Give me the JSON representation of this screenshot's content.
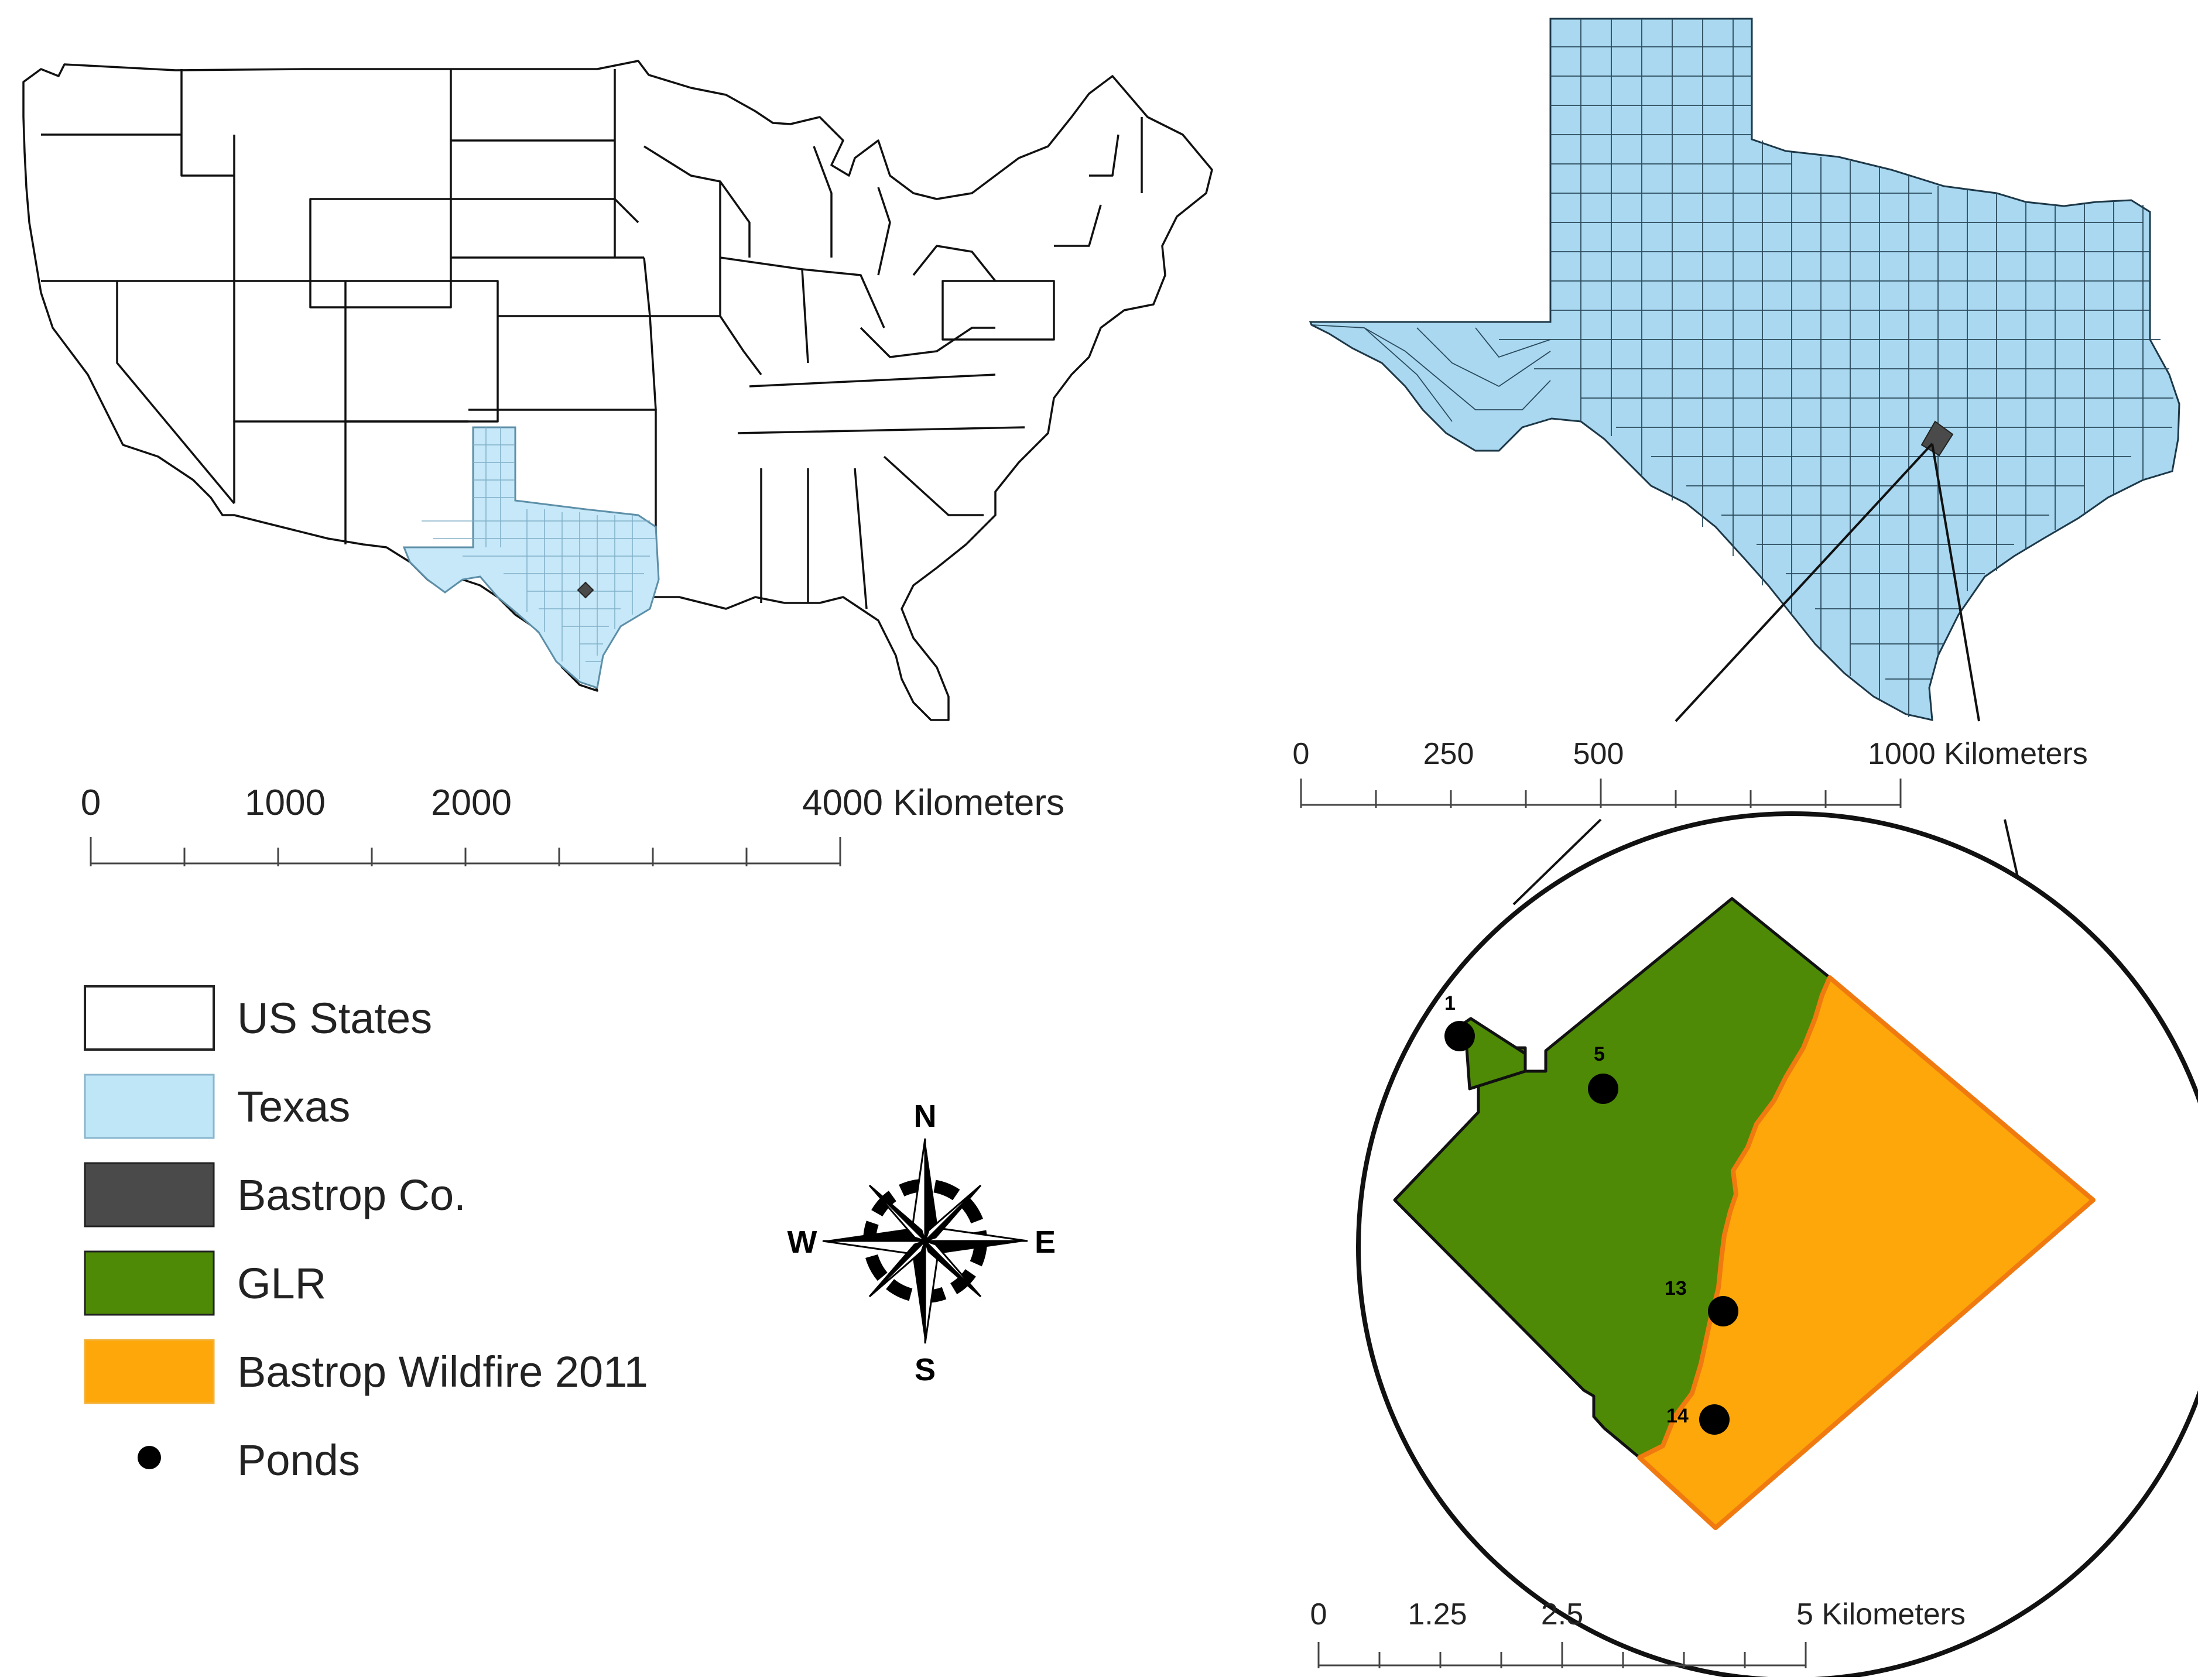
{
  "us_map_scale": {
    "ticks": [
      "0",
      "1000",
      "2000",
      "4000 Kilometers"
    ]
  },
  "texas_map_scale": {
    "ticks": [
      "0",
      "250",
      "500",
      "1000 Kilometers"
    ]
  },
  "inset_scale": {
    "ticks": [
      "0",
      "1.25",
      "2.5",
      "5 Kilometers"
    ]
  },
  "legend": {
    "items": [
      {
        "label": "US States",
        "swatch": "box",
        "color": "#ffffff"
      },
      {
        "label": "Texas",
        "swatch": "box",
        "color": "#bfe6f7"
      },
      {
        "label": "Bastrop Co.",
        "swatch": "box",
        "color": "#4a4a4a"
      },
      {
        "label": "GLR",
        "swatch": "box",
        "color": "#4e8a06"
      },
      {
        "label": "Bastrop Wildfire 2011",
        "swatch": "box",
        "color": "#fda70a"
      },
      {
        "label": "Ponds",
        "swatch": "dot",
        "color": "#000000"
      }
    ]
  },
  "compass": {
    "n": "N",
    "s": "S",
    "e": "E",
    "w": "W"
  },
  "ponds": [
    {
      "id": "1"
    },
    {
      "id": "5"
    },
    {
      "id": "13"
    },
    {
      "id": "14"
    }
  ],
  "colors": {
    "texas_fill": "#a9d8f0",
    "texas_small_fill": "#c6e8f8",
    "bastrop": "#4a4a4a",
    "glr": "#4e8a06",
    "wildfire": "#fda70a",
    "wildfire_edge": "#f07a10"
  }
}
